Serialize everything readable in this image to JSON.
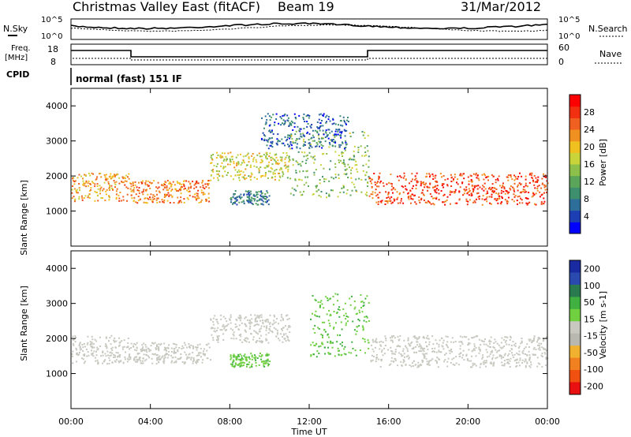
{
  "header": {
    "title": "Christmas Valley East (fitACF)",
    "beam": "Beam 19",
    "date": "31/Mar/2012"
  },
  "top_panels": {
    "nsky_label": "N.Sky",
    "nsearch_label": "N.Search",
    "freq_label_line1": "Freq.",
    "freq_label_line2": "[MHz]",
    "nave_label": "Nave",
    "cpid_label": "CPID",
    "cpid_text": "normal (fast) 151 IF",
    "noise_ticks_left": [
      "10^5",
      "10^0"
    ],
    "noise_ticks_right": [
      "10^5",
      "10^0"
    ],
    "freq_ticks": [
      "18",
      "8"
    ],
    "nave_ticks": [
      "60",
      "0"
    ]
  },
  "colors": {
    "power": [
      "#0000ff",
      "#1e3fb4",
      "#2e6e9a",
      "#3d8f6e",
      "#5aa55a",
      "#8cc04a",
      "#c8d43a",
      "#f0c020",
      "#f09020",
      "#f06020",
      "#f03010",
      "#ff0000"
    ],
    "velocity": [
      "#1a2aa0",
      "#2a4ab0",
      "#2a7a50",
      "#40b040",
      "#70d040",
      "#c8c8c0",
      "#b8b8b0",
      "#f0b030",
      "#f08020",
      "#f05010",
      "#e81010"
    ]
  },
  "chart_data": [
    {
      "type": "heatmap",
      "name": "power",
      "xlabel": "",
      "ylabel": "Slant Range [km]",
      "xlim": [
        0,
        24
      ],
      "ylim": [
        0,
        4500
      ],
      "yticks": [
        "1000",
        "2000",
        "3000",
        "4000"
      ],
      "colorbar": {
        "label": "Power [dB]",
        "ticks": [
          "4",
          "8",
          "12",
          "16",
          "20",
          "24",
          "28"
        ],
        "range": [
          0,
          32
        ]
      },
      "bands": [
        {
          "t": [
            0.0,
            3.0
          ],
          "r": [
            1300,
            2100
          ],
          "value": 22
        },
        {
          "t": [
            3.0,
            7.0
          ],
          "r": [
            1250,
            1900
          ],
          "value": 24
        },
        {
          "t": [
            7.0,
            11.0
          ],
          "r": [
            1900,
            2700
          ],
          "value": 18
        },
        {
          "t": [
            11.0,
            15.0
          ],
          "r": [
            1400,
            3300
          ],
          "value": 14
        },
        {
          "t": [
            15.0,
            24.0
          ],
          "r": [
            1200,
            2100
          ],
          "value": 27
        },
        {
          "t": [
            8.0,
            10.0
          ],
          "r": [
            1200,
            1600
          ],
          "value": 8
        },
        {
          "t": [
            9.5,
            14.0
          ],
          "r": [
            2800,
            3800
          ],
          "value": 6
        }
      ]
    },
    {
      "type": "heatmap",
      "name": "velocity",
      "xlabel": "Time UT",
      "ylabel": "Slant Range [km]",
      "xlim": [
        0,
        24
      ],
      "ylim": [
        0,
        4500
      ],
      "xticks": [
        "00:00",
        "04:00",
        "08:00",
        "12:00",
        "16:00",
        "20:00",
        "00:00"
      ],
      "yticks": [
        "1000",
        "2000",
        "3000",
        "4000"
      ],
      "colorbar": {
        "label": "Velocity [m s-1]",
        "ticks": [
          "200",
          "100",
          "50",
          "15",
          "-15",
          "-50",
          "-100",
          "-200"
        ],
        "range": [
          -250,
          250
        ]
      },
      "bands": [
        {
          "t": [
            0.0,
            3.0
          ],
          "r": [
            1300,
            2100
          ],
          "value": 0
        },
        {
          "t": [
            3.0,
            7.0
          ],
          "r": [
            1300,
            1900
          ],
          "value": 0
        },
        {
          "t": [
            7.0,
            11.0
          ],
          "r": [
            1900,
            2700
          ],
          "value": 0
        },
        {
          "t": [
            8.0,
            10.0
          ],
          "r": [
            1200,
            1600
          ],
          "value": 60
        },
        {
          "t": [
            12.0,
            15.0
          ],
          "r": [
            1500,
            3300
          ],
          "value": 60
        },
        {
          "t": [
            15.0,
            24.0
          ],
          "r": [
            1200,
            2100
          ],
          "value": 0
        }
      ]
    }
  ]
}
